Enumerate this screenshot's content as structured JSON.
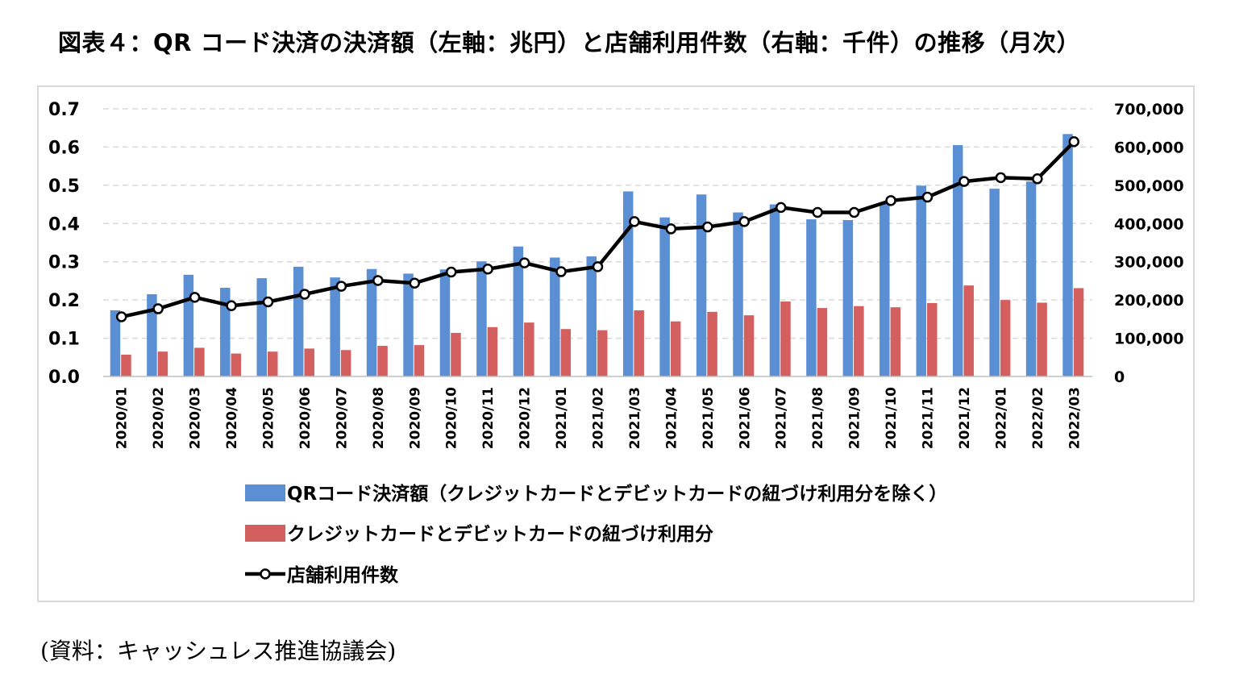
{
  "title": "図表４：QR コード決済の決済額（左軸：兆円）と店舗利用件数（右軸：千件）の推移（月次）",
  "source": "(資料：キャッシュレス推進協議会)",
  "colors": {
    "qr_bar": "#5b8fd4",
    "card_bar": "#d35f5f",
    "line": "#000000",
    "grid": "#d9d9d9"
  },
  "chart_data": {
    "type": "bar",
    "grid": true,
    "legend_placement": "bottom",
    "categories": [
      "2020/01",
      "2020/02",
      "2020/03",
      "2020/04",
      "2020/05",
      "2020/06",
      "2020/07",
      "2020/08",
      "2020/09",
      "2020/10",
      "2020/11",
      "2020/12",
      "2021/01",
      "2021/02",
      "2021/03",
      "2021/04",
      "2021/05",
      "2021/06",
      "2021/07",
      "2021/08",
      "2021/09",
      "2021/10",
      "2021/11",
      "2021/12",
      "2022/01",
      "2022/02",
      "2022/03"
    ],
    "y_left": {
      "ylim": [
        0,
        0.7
      ],
      "ticks": [
        "0.0",
        "0.1",
        "0.2",
        "0.3",
        "0.4",
        "0.5",
        "0.6",
        "0.7"
      ]
    },
    "y_right": {
      "ylim": [
        0,
        700000
      ],
      "ticks": [
        "0",
        "100,000",
        "200,000",
        "300,000",
        "400,000",
        "500,000",
        "600,000",
        "700,000"
      ]
    },
    "series": [
      {
        "name": "QRコード決済額（クレジットカードとデビットカードの紐づけ利用分を除く）",
        "type": "bar",
        "axis": "left",
        "values": [
          0.173,
          0.215,
          0.266,
          0.232,
          0.257,
          0.287,
          0.259,
          0.281,
          0.269,
          0.28,
          0.301,
          0.34,
          0.311,
          0.314,
          0.484,
          0.416,
          0.476,
          0.429,
          0.45,
          0.411,
          0.409,
          0.455,
          0.499,
          0.605,
          0.491,
          0.51,
          0.634
        ]
      },
      {
        "name": "クレジットカードとデビットカードの紐づけ利用分",
        "type": "bar",
        "axis": "left",
        "values": [
          0.057,
          0.065,
          0.075,
          0.06,
          0.065,
          0.073,
          0.069,
          0.08,
          0.082,
          0.114,
          0.129,
          0.141,
          0.124,
          0.121,
          0.173,
          0.144,
          0.169,
          0.16,
          0.196,
          0.179,
          0.184,
          0.181,
          0.192,
          0.238,
          0.2,
          0.193,
          0.231
        ]
      },
      {
        "name": "店舗利用件数",
        "type": "line",
        "axis": "right",
        "values": [
          156000,
          177000,
          207000,
          185000,
          195000,
          215000,
          236000,
          251000,
          244000,
          273000,
          281000,
          297000,
          274000,
          287000,
          405000,
          386000,
          391000,
          405000,
          442000,
          429000,
          429000,
          460000,
          469000,
          510000,
          520000,
          517000,
          614000
        ]
      }
    ]
  }
}
